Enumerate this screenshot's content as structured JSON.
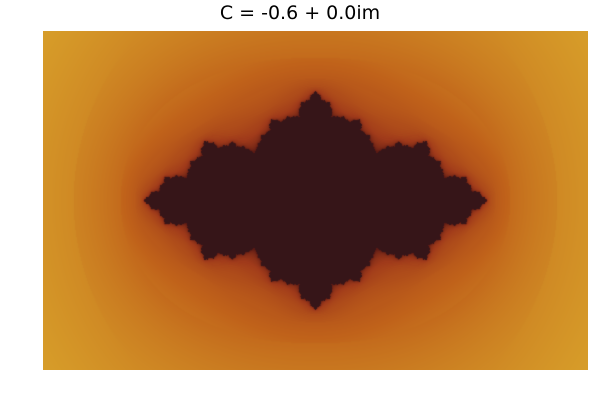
{
  "figure": {
    "title": "C = -0.6 + 0.0im",
    "parameter_c": {
      "re": -0.6,
      "im": 0.0
    },
    "render": "julia-set-escape-time",
    "colormap": [
      "#361518",
      "#5a1a14",
      "#a03a1a",
      "#c0621a",
      "#d8a02a",
      "#e6e640"
    ],
    "background": "#ffffff"
  }
}
